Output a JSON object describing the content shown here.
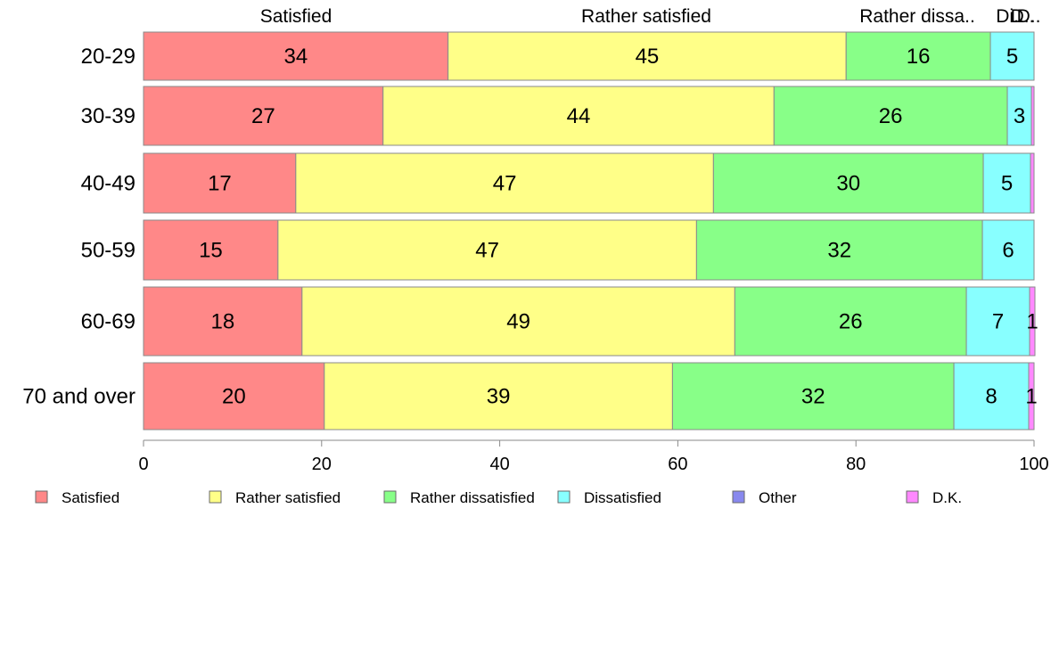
{
  "chart_data": {
    "type": "bar",
    "orientation": "horizontal",
    "stacked": true,
    "categories": [
      "20-29",
      "30-39",
      "40-49",
      "50-59",
      "60-69",
      "70 and over"
    ],
    "series": [
      {
        "name": "Satisfied",
        "color": "#FF8888",
        "values": [
          34.2,
          26.9,
          17.1,
          15.1,
          17.8,
          20.3
        ]
      },
      {
        "name": "Rather satisfied",
        "color": "#FFFF88",
        "values": [
          44.7,
          43.9,
          46.9,
          47.0,
          48.6,
          39.1
        ]
      },
      {
        "name": "Rather dissatisfied",
        "color": "#88FF88",
        "values": [
          16.2,
          26.2,
          30.3,
          32.1,
          26.0,
          31.6
        ]
      },
      {
        "name": "Dissatisfied",
        "color": "#88FFFF",
        "values": [
          4.9,
          2.7,
          5.3,
          5.8,
          7.1,
          8.4
        ]
      },
      {
        "name": "Other",
        "color": "#8888EE",
        "values": [
          0.0,
          0.0,
          0.0,
          0.0,
          0.0,
          0.0
        ]
      },
      {
        "name": "D.K.",
        "color": "#FF88FF",
        "values": [
          0.0,
          0.3,
          0.4,
          0.0,
          0.6,
          0.6
        ]
      }
    ],
    "segment_labels": [
      [
        "34",
        "45",
        "16",
        "5",
        "",
        ""
      ],
      [
        "27",
        "44",
        "26",
        "3",
        "",
        ""
      ],
      [
        "17",
        "47",
        "30",
        "5",
        "",
        ""
      ],
      [
        "15",
        "47",
        "32",
        "6",
        "",
        ""
      ],
      [
        "18",
        "49",
        "26",
        "7",
        "",
        "1"
      ],
      [
        "20",
        "39",
        "32",
        "8",
        "",
        "1"
      ]
    ],
    "top_labels": [
      "Satisfied",
      "Rather satisfied",
      "Rather dissa..",
      "Di..",
      "D..",
      "D.."
    ],
    "xlim": [
      0,
      100
    ],
    "xticks": [
      0,
      20,
      40,
      60,
      80,
      100
    ],
    "xtick_labels": [
      "0",
      "20",
      "40",
      "60",
      "80",
      "100"
    ],
    "legend": {
      "position": "bottom",
      "entries": [
        "Satisfied",
        "Rather satisfied",
        "Rather dissatisfied",
        "Dissatisfied",
        "Other",
        "D.K."
      ]
    },
    "grid": false
  }
}
